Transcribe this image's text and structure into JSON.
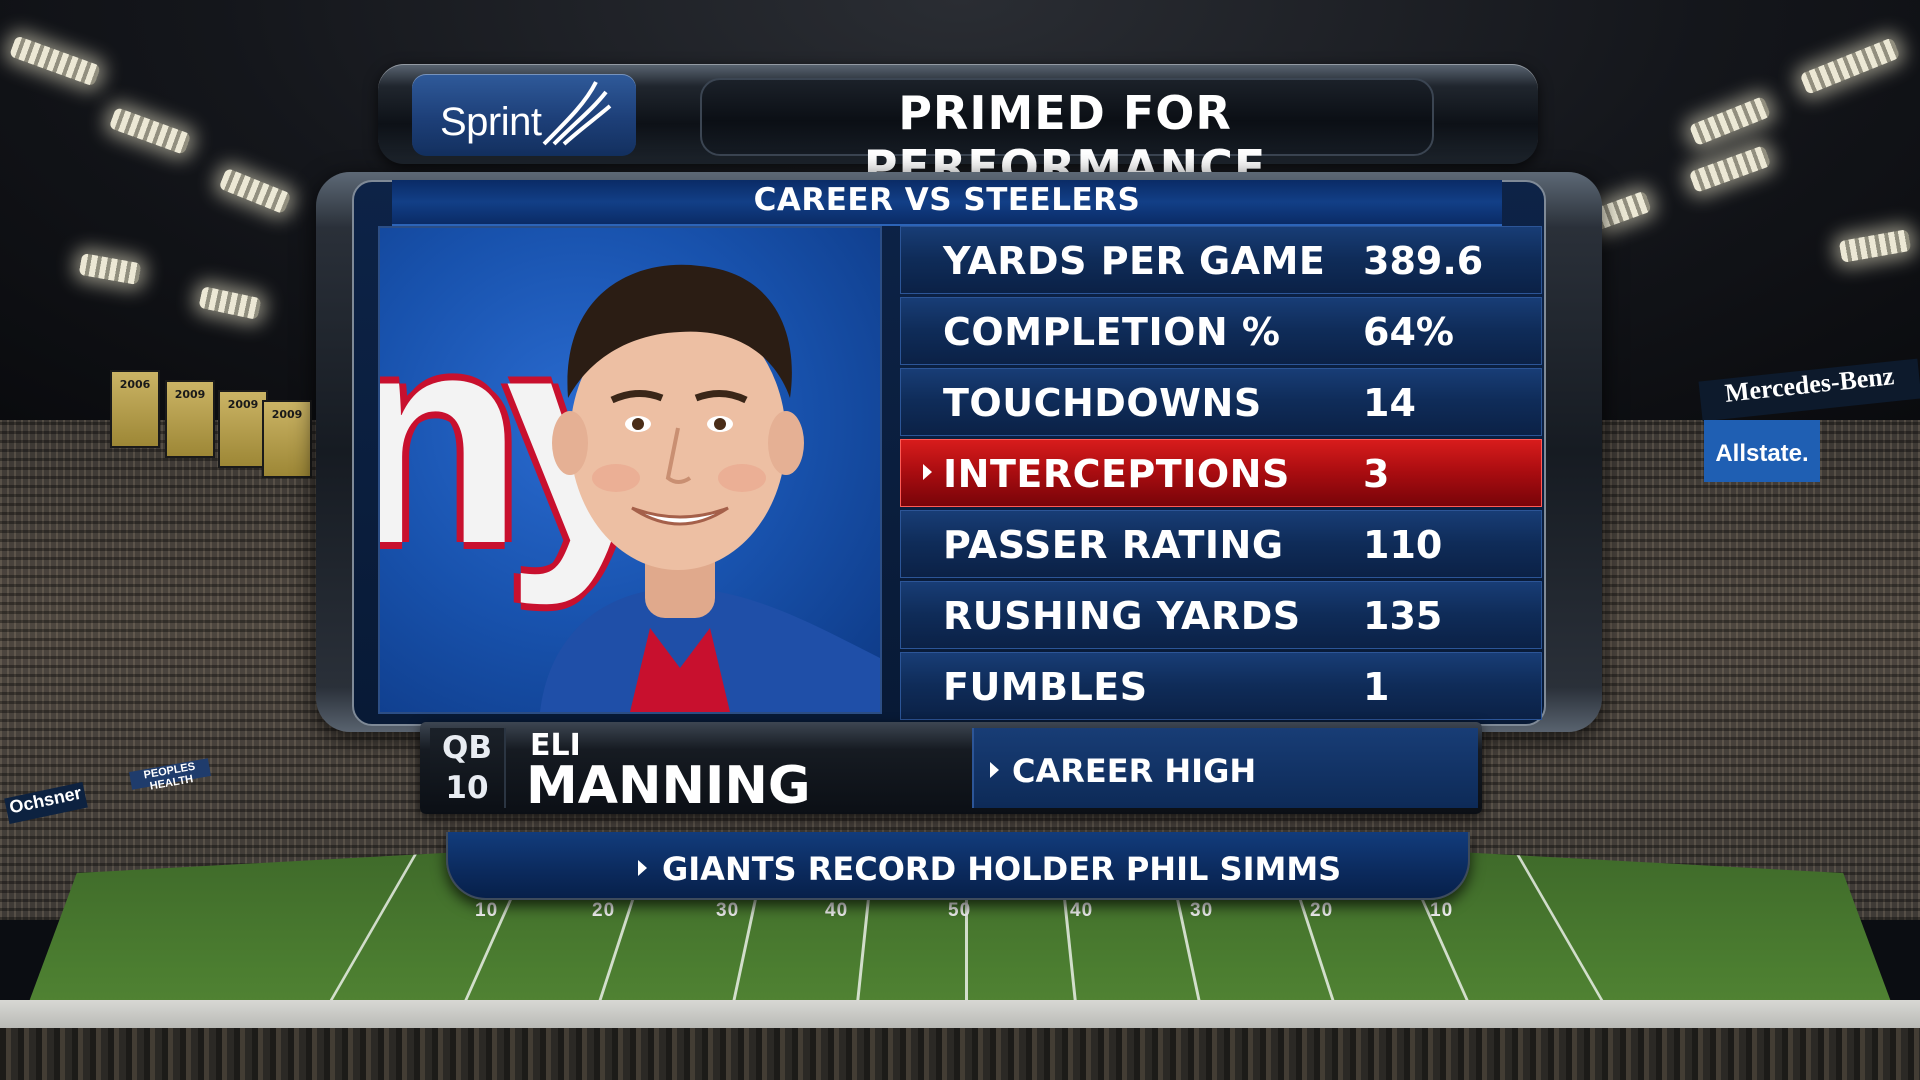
{
  "sponsor": {
    "name": "Sprint"
  },
  "header": {
    "title": "PRIMED FOR PERFORMANCE"
  },
  "subtitle": "CAREER VS STEELERS",
  "team_logo_text": "ny",
  "stats": [
    {
      "label": "YARDS PER GAME",
      "value": "389.6",
      "highlighted": false
    },
    {
      "label": "COMPLETION %",
      "value": "64%",
      "highlighted": false
    },
    {
      "label": "TOUCHDOWNS",
      "value": "14",
      "highlighted": false
    },
    {
      "label": "INTERCEPTIONS",
      "value": "3",
      "highlighted": true
    },
    {
      "label": "PASSER RATING",
      "value": "110",
      "highlighted": false
    },
    {
      "label": "RUSHING YARDS",
      "value": "135",
      "highlighted": false
    },
    {
      "label": "FUMBLES",
      "value": "1",
      "highlighted": false
    }
  ],
  "player": {
    "position": "QB",
    "number": "10",
    "first_name": "ELI",
    "last_name": "MANNING"
  },
  "note": "CAREER HIGH",
  "footer": "GIANTS RECORD HOLDER PHIL SIMMS",
  "background": {
    "banners": [
      "2006",
      "2009",
      "2009",
      "2009"
    ],
    "ads": [
      "Mercedes-Benz",
      "Allstate.",
      "Ochsner",
      "PEOPLES HEALTH"
    ],
    "yard_numbers": [
      "10",
      "20",
      "30",
      "40",
      "50",
      "40",
      "30",
      "20",
      "10"
    ]
  },
  "colors": {
    "panel_blue": "#0f2c59",
    "highlight_red": "#c8101a",
    "sprint_blue": "#1d3f78",
    "giants_blue": "#1852ad",
    "giants_red": "#c8102e"
  }
}
